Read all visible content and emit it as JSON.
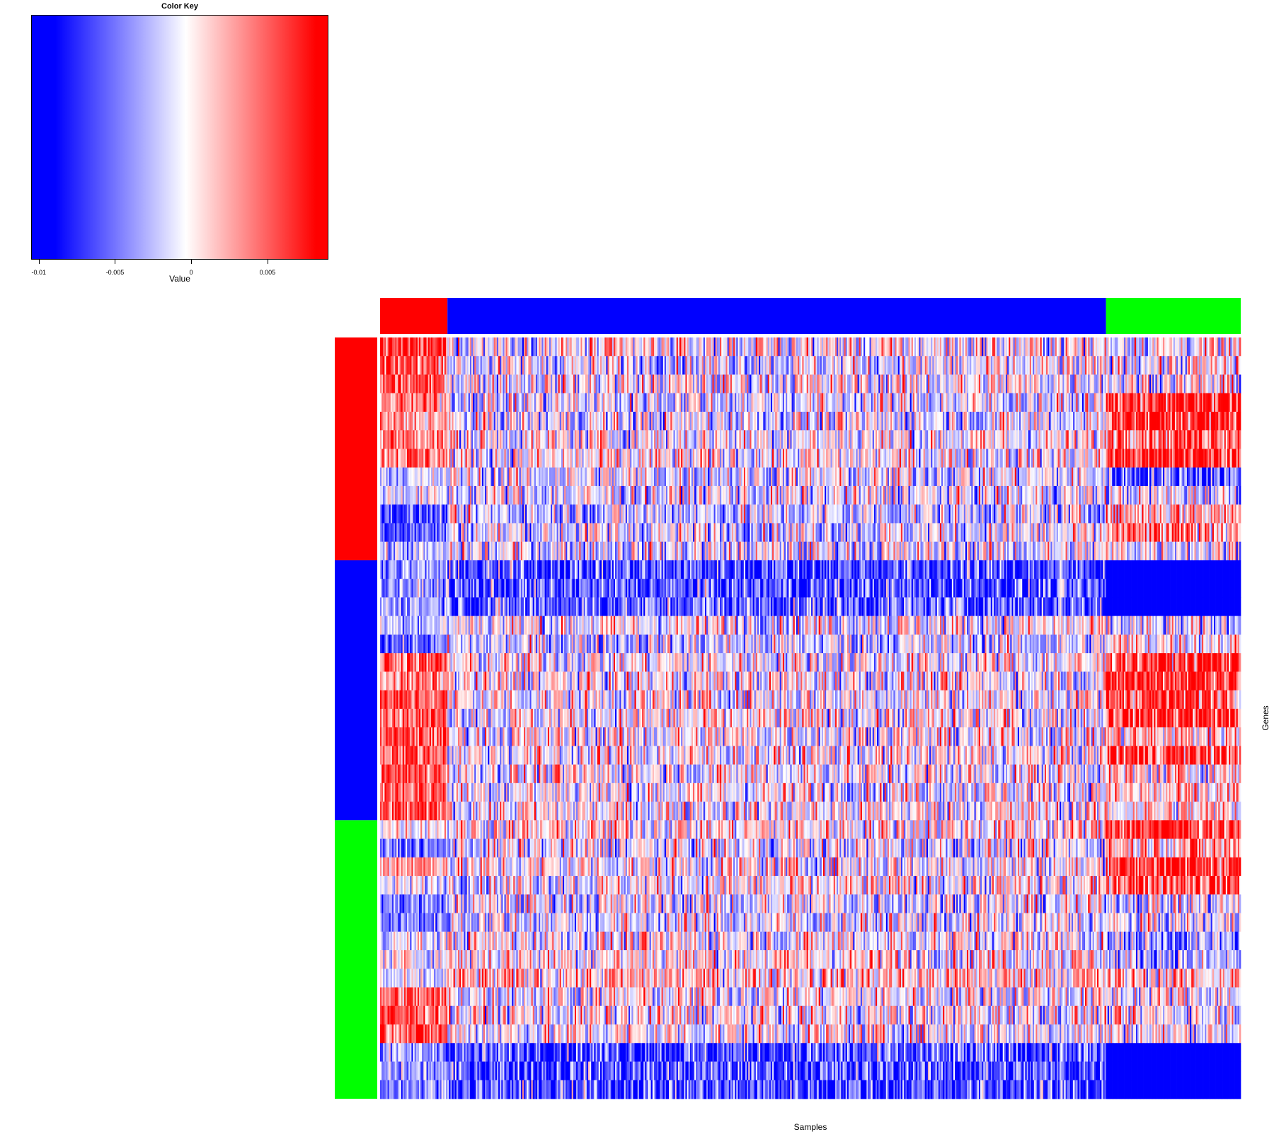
{
  "color_key": {
    "title": "Color Key",
    "xlabel": "Value",
    "ticks": [
      "-0.01",
      "-0.005",
      "0",
      "0.005"
    ],
    "tick_values": [
      -0.01,
      -0.005,
      0,
      0.005
    ],
    "range": [
      -0.0105,
      0.009
    ],
    "colors": {
      "low": "#0000ff",
      "mid": "#ffffff",
      "high": "#ff0000"
    }
  },
  "chart_data": {
    "type": "heatmap",
    "title": "",
    "xlabel": "Samples",
    "ylabel": "Genes",
    "value_range": [
      -0.01,
      0.009
    ],
    "column_groups": [
      {
        "color": "#ff0000",
        "count": 45
      },
      {
        "color": "#0000ff",
        "count": 440
      },
      {
        "color": "#00ff00",
        "count": 90
      }
    ],
    "row_groups": [
      {
        "color": "#ff0000",
        "count": 12
      },
      {
        "color": "#0000ff",
        "count": 14
      },
      {
        "color": "#00ff00",
        "count": 15
      }
    ],
    "block_means": [
      [
        0.007,
        0.0,
        0.0
      ],
      [
        0.006,
        -0.001,
        0.0
      ],
      [
        0.006,
        0.0,
        0.0
      ],
      [
        0.004,
        -0.001,
        0.008
      ],
      [
        0.003,
        -0.001,
        0.008
      ],
      [
        0.005,
        0.0,
        0.007
      ],
      [
        0.005,
        0.0,
        0.008
      ],
      [
        -0.002,
        -0.001,
        -0.006
      ],
      [
        -0.001,
        -0.001,
        -0.001
      ],
      [
        -0.007,
        -0.002,
        0.003
      ],
      [
        -0.006,
        -0.001,
        0.004
      ],
      [
        -0.003,
        -0.001,
        0.0
      ],
      [
        -0.004,
        -0.007,
        -0.011
      ],
      [
        -0.004,
        -0.007,
        -0.011
      ],
      [
        -0.003,
        -0.006,
        -0.011
      ],
      [
        -0.002,
        0.0,
        -0.002
      ],
      [
        -0.006,
        -0.002,
        0.001
      ],
      [
        0.006,
        0.0,
        0.008
      ],
      [
        0.004,
        0.0,
        0.008
      ],
      [
        0.006,
        0.0,
        0.007
      ],
      [
        0.006,
        0.0,
        0.008
      ],
      [
        0.006,
        0.0,
        0.002
      ],
      [
        0.006,
        0.0,
        0.007
      ],
      [
        0.006,
        0.0,
        0.001
      ],
      [
        0.006,
        0.0,
        0.001
      ],
      [
        0.006,
        0.0,
        0.001
      ],
      [
        0.001,
        0.001,
        0.008
      ],
      [
        -0.006,
        -0.001,
        0.003
      ],
      [
        0.004,
        0.0,
        0.008
      ],
      [
        -0.001,
        0.0,
        0.007
      ],
      [
        -0.005,
        -0.001,
        -0.001
      ],
      [
        -0.005,
        -0.001,
        -0.001
      ],
      [
        -0.001,
        0.0,
        -0.004
      ],
      [
        0.0,
        0.001,
        -0.003
      ],
      [
        -0.002,
        0.002,
        0.002
      ],
      [
        0.005,
        0.0,
        0.0
      ],
      [
        0.006,
        0.0,
        0.0
      ],
      [
        0.006,
        0.0,
        0.0
      ],
      [
        -0.004,
        -0.007,
        -0.011
      ],
      [
        -0.004,
        -0.007,
        -0.011
      ],
      [
        -0.004,
        -0.007,
        -0.011
      ]
    ]
  }
}
